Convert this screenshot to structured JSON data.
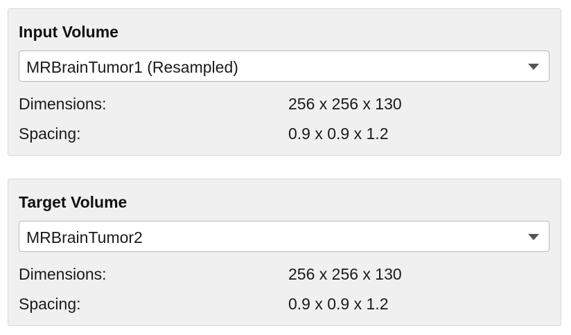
{
  "input_volume": {
    "title": "Input Volume",
    "selected": "MRBrainTumor1 (Resampled)",
    "dimensions_label": "Dimensions:",
    "dimensions_value": "256 x 256 x 130",
    "spacing_label": "Spacing:",
    "spacing_value": "0.9 x 0.9 x 1.2"
  },
  "target_volume": {
    "title": "Target Volume",
    "selected": "MRBrainTumor2",
    "dimensions_label": "Dimensions:",
    "dimensions_value": "256 x 256 x 130",
    "spacing_label": "Spacing:",
    "spacing_value": "0.9 x 0.9 x 1.2"
  },
  "icons": {
    "dropdown": "chevron-down-icon"
  }
}
